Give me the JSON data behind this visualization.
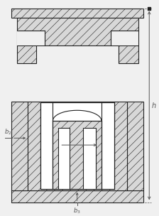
{
  "bg_color": "#f0f0f0",
  "line_color": "#222222",
  "dim_color": "#555555",
  "fig_width": 2.24,
  "fig_height": 3.04,
  "dpi": 100,
  "hatch_fc": "#d8d8d8"
}
